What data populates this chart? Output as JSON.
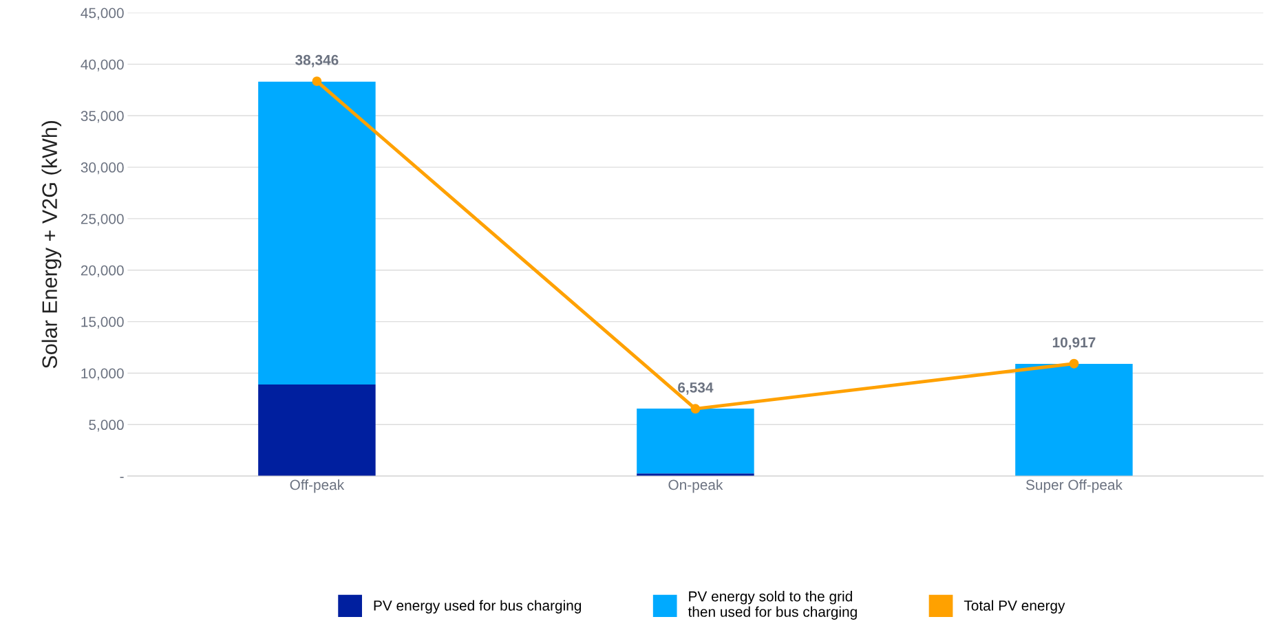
{
  "chart_data": {
    "type": "bar",
    "stacked": true,
    "ylabel": "Solar Energy + V2G (kWh)",
    "categories": [
      "Off-peak",
      "On-peak",
      "Super Off-peak"
    ],
    "series": [
      {
        "name": "PV energy used for bus charging",
        "color": "#001f9f",
        "values": [
          8900,
          250,
          0
        ]
      },
      {
        "name": "PV energy sold to the grid\nthen used for bus charging",
        "color": "#00aaff",
        "values": [
          29400,
          6300,
          10900
        ]
      },
      {
        "name": "Total PV energy",
        "type": "line",
        "color": "#ffa100",
        "marker": "circle",
        "values": [
          38346,
          6534,
          10917
        ],
        "value_labels": [
          "38,346",
          "6,534",
          "10,917"
        ]
      }
    ],
    "ylim": [
      0,
      45000
    ],
    "yticks": [
      {
        "value": 0,
        "label": "-"
      },
      {
        "value": 5000,
        "label": "5,000"
      },
      {
        "value": 10000,
        "label": "10,000"
      },
      {
        "value": 15000,
        "label": "15,000"
      },
      {
        "value": 20000,
        "label": "20,000"
      },
      {
        "value": 25000,
        "label": "25,000"
      },
      {
        "value": 30000,
        "label": "30,000"
      },
      {
        "value": 35000,
        "label": "35,000"
      },
      {
        "value": 40000,
        "label": "40,000"
      },
      {
        "value": 45000,
        "label": "45,000"
      }
    ],
    "grid": "y",
    "legend": "bottom"
  }
}
